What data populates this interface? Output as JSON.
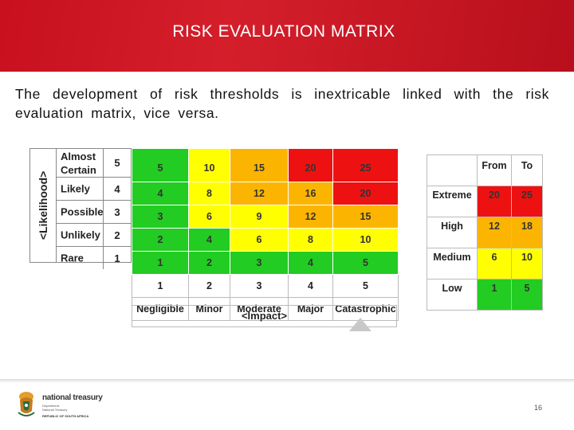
{
  "header": {
    "title": "RISK EVALUATION MATRIX"
  },
  "intro": "The development of risk thresholds is inextricable linked with the risk evaluation matrix, vice versa.",
  "likelihood": {
    "axis_label": "<Likelihood>",
    "rows": [
      {
        "label": "Almost Certain",
        "value": "5"
      },
      {
        "label": "Likely",
        "value": "4"
      },
      {
        "label": "Possible",
        "value": "3"
      },
      {
        "label": "Unlikely",
        "value": "2"
      },
      {
        "label": "Rare",
        "value": "1"
      }
    ]
  },
  "matrix": {
    "rows": [
      [
        "5",
        "10",
        "15",
        "20",
        "25"
      ],
      [
        "4",
        "8",
        "12",
        "16",
        "20"
      ],
      [
        "3",
        "6",
        "9",
        "12",
        "15"
      ],
      [
        "2",
        "4",
        "6",
        "8",
        "10"
      ],
      [
        "1",
        "2",
        "3",
        "4",
        "5"
      ]
    ],
    "impact_values": [
      "1",
      "2",
      "3",
      "4",
      "5"
    ],
    "impact_labels": [
      "Negligible",
      "Minor",
      "Moderate",
      "Major",
      "Catastrophic"
    ],
    "axis_label": "<Impact>"
  },
  "colors": {
    "green": "#22cc22",
    "yellow": "#ffff00",
    "orange": "#fbb500",
    "red": "#ee1111"
  },
  "ranges": {
    "from_label": "From",
    "to_label": "To",
    "rows": [
      {
        "label": "Extreme",
        "from": "20",
        "to": "25"
      },
      {
        "label": "High",
        "from": "12",
        "to": "18"
      },
      {
        "label": "Medium",
        "from": "6",
        "to": "10"
      },
      {
        "label": "Low",
        "from": "1",
        "to": "5"
      }
    ]
  },
  "footer": {
    "logo_title": "national treasury",
    "logo_sub_1": "Department:",
    "logo_sub_2": "National Treasury",
    "logo_country": "REPUBLIC OF SOUTH AFRICA",
    "emblem_icon": "coat-of-arms-icon",
    "page_number": "16"
  }
}
